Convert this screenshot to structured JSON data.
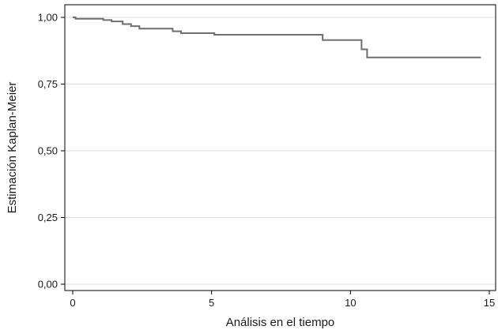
{
  "chart_data": {
    "type": "line",
    "step": true,
    "xlabel": "Análisis en el tiempo",
    "ylabel": "Estimación Kaplan-Meier",
    "xlim": [
      0,
      15
    ],
    "ylim": [
      0,
      1
    ],
    "x_ticks": [
      0,
      5,
      10,
      15
    ],
    "x_tick_labels": [
      "0",
      "5",
      "10",
      "15"
    ],
    "y_ticks": [
      0,
      0.25,
      0.5,
      0.75,
      1
    ],
    "y_tick_labels": [
      "0,00",
      "0,25",
      "0,50",
      "0,75",
      "1,00"
    ],
    "grid": "horizontal",
    "legend": "none",
    "series": [
      {
        "color": "#6e6e6e",
        "x": [
          0,
          0.1,
          1.1,
          1.4,
          1.8,
          2.1,
          2.4,
          3.6,
          3.9,
          5.1,
          9.0,
          10.4,
          10.6,
          10.8,
          14.7
        ],
        "y": [
          1.0,
          0.995,
          0.99,
          0.985,
          0.975,
          0.967,
          0.958,
          0.948,
          0.941,
          0.935,
          0.915,
          0.88,
          0.85,
          0.85,
          0.85
        ]
      }
    ]
  }
}
